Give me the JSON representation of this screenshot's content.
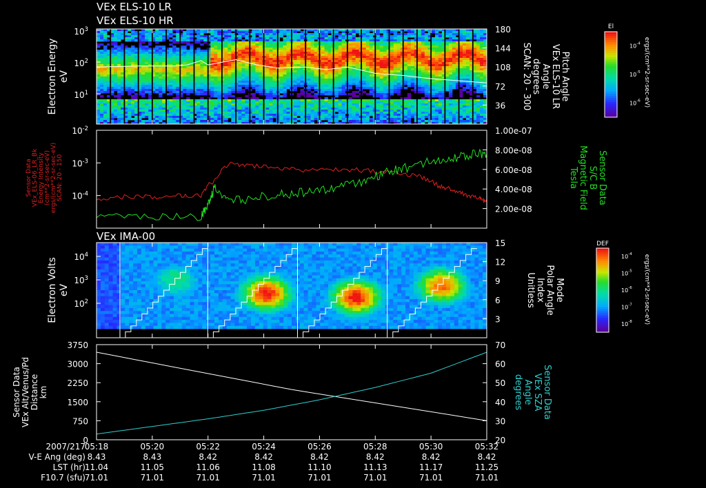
{
  "header": {
    "line1": "VEx ELS-10 LR",
    "line2": "VEx ELS-10 HR"
  },
  "colors": {
    "background": "#000000",
    "axes": "#ffffff",
    "energy_trace": "#e02020",
    "magnetic_trace": "#20e020",
    "sza_trace": "#30d0d0",
    "alt_trace": "#ffffff"
  },
  "chart_data": [
    {
      "type": "heatmap",
      "panel": "els-spectrogram",
      "ylabel": [
        "Electron Energy",
        "eV"
      ],
      "y_log": true,
      "yticks_left": [
        {
          "base": "10",
          "exp": "3"
        },
        {
          "base": "10",
          "exp": "2"
        },
        {
          "base": "10",
          "exp": "1"
        }
      ],
      "right_axis_label": [
        "Pitch Angle",
        "VEx ELS-10 LR",
        "Angle",
        "degrees",
        "SCAN: 20 - 300"
      ],
      "yticks_right": [
        "180",
        "144",
        "108",
        "72",
        "36"
      ],
      "ylim_right": [
        0,
        180
      ],
      "colorbar": {
        "title": "El",
        "unit": "ergs/(cm**2-sr-sec-eV)",
        "ticks": [
          {
            "base": "10",
            "exp": "-4"
          },
          {
            "base": "10",
            "exp": "-5"
          },
          {
            "base": "10",
            "exp": "-6"
          }
        ]
      },
      "pitch_angle_line": [
        {
          "t": "05:18:00",
          "deg": 108
        },
        {
          "t": "05:19:30",
          "deg": 110
        },
        {
          "t": "05:20:45",
          "deg": 110
        },
        {
          "t": "05:21:15",
          "deg": 112
        },
        {
          "t": "05:21:45",
          "deg": 120
        },
        {
          "t": "05:22:00",
          "deg": 112
        },
        {
          "t": "05:22:30",
          "deg": 117
        },
        {
          "t": "05:23:00",
          "deg": 122
        },
        {
          "t": "05:23:45",
          "deg": 112
        },
        {
          "t": "05:24:30",
          "deg": 106
        },
        {
          "t": "05:25:30",
          "deg": 108
        },
        {
          "t": "05:26:15",
          "deg": 103
        },
        {
          "t": "05:27:00",
          "deg": 108
        },
        {
          "t": "05:28:00",
          "deg": 96
        },
        {
          "t": "05:29:00",
          "deg": 92
        },
        {
          "t": "05:30:00",
          "deg": 86
        },
        {
          "t": "05:31:00",
          "deg": 82
        },
        {
          "t": "05:32:00",
          "deg": 78
        }
      ]
    },
    {
      "type": "line",
      "panel": "sensor-lines",
      "ylabel_left": [
        "Sensor Data",
        "VEx_ELS-06_LR_Bk",
        "Energy Intensity",
        "(cm**2-sr-sec-eV)",
        "ergs/(cm**2-sr-sec-eV)",
        "SCAN: 20 - 150"
      ],
      "yticks_left": [
        {
          "base": "10",
          "exp": "-2"
        },
        {
          "base": "10",
          "exp": "-3"
        },
        {
          "base": "10",
          "exp": "-4"
        }
      ],
      "ylabel_right": [
        "Sensor Data",
        "S/C B",
        "Magnetic Field",
        "Tesla"
      ],
      "yticks_right": [
        "1.00e-07",
        "8.00e-08",
        "6.00e-08",
        "4.00e-08",
        "2.00e-08"
      ],
      "ylim_right": [
        0,
        1e-07
      ],
      "series": [
        {
          "key": "energy_intensity",
          "log": true,
          "x": [
            "05:18:00",
            "05:19:00",
            "05:20:00",
            "05:21:00",
            "05:21:45",
            "05:22:15",
            "05:22:45",
            "05:23:30",
            "05:24:30",
            "05:25:30",
            "05:26:30",
            "05:27:30",
            "05:28:30",
            "05:29:30",
            "05:30:15",
            "05:30:45",
            "05:31:15",
            "05:31:45",
            "05:32:00"
          ],
          "values": [
            8e-05,
            9e-05,
            9e-05,
            0.0001,
            0.0001,
            0.0003,
            0.0009,
            0.0008,
            0.0007,
            0.0006,
            0.00065,
            0.0006,
            0.0005,
            0.0004,
            0.0002,
            0.00015,
            0.0001,
            8e-05,
            6e-05
          ]
        },
        {
          "key": "magnetic_field",
          "log": false,
          "x": [
            "05:18:00",
            "05:20:00",
            "05:21:45",
            "05:22:00",
            "05:22:15",
            "05:22:45",
            "05:23:30",
            "05:24:30",
            "05:25:30",
            "05:26:30",
            "05:27:30",
            "05:28:15",
            "05:29:00",
            "05:30:00",
            "05:30:45",
            "05:31:30",
            "05:32:00"
          ],
          "values": [
            1.1e-08,
            1.1e-08,
            1.2e-08,
            2.3e-08,
            4.3e-08,
            2.7e-08,
            3e-08,
            3.4e-08,
            3.7e-08,
            4.1e-08,
            4.6e-08,
            5.6e-08,
            6.1e-08,
            6.8e-08,
            7.1e-08,
            7.5e-08,
            7.6e-08
          ]
        }
      ]
    },
    {
      "type": "heatmap",
      "panel": "ima-spectrogram",
      "title": "VEx IMA-00",
      "ylabel": [
        "Electron Volts",
        "eV"
      ],
      "y_log": true,
      "yticks_left": [
        {
          "base": "10",
          "exp": "4"
        },
        {
          "base": "10",
          "exp": "3"
        },
        {
          "base": "10",
          "exp": "2"
        }
      ],
      "right_axis_label": [
        "Mode",
        "Polar Angle",
        "Index",
        "Unitless"
      ],
      "yticks_right": [
        "15",
        "12",
        "9",
        "6",
        "3"
      ],
      "ylim_right": [
        0,
        15
      ],
      "colorbar": {
        "title": "DEF",
        "unit": "ergs/(cm**2-sr-sec-eV)",
        "ticks": [
          {
            "base": "10",
            "exp": "-4"
          },
          {
            "base": "10",
            "exp": "-5"
          },
          {
            "base": "10",
            "exp": "-6"
          },
          {
            "base": "10",
            "exp": "-7"
          },
          {
            "base": "10",
            "exp": "-8"
          }
        ]
      }
    },
    {
      "type": "line",
      "panel": "geometry-lines",
      "ylabel_left": [
        "Sensor Data",
        "VEx Alt/Venus/Pd",
        "Distance",
        "km"
      ],
      "yticks_left": [
        "3750",
        "3000",
        "2250",
        "1500",
        "750",
        "0"
      ],
      "ylim_left": [
        0,
        3750
      ],
      "ylabel_right": [
        "Sensor Data",
        "VEx SZA",
        "Angle",
        "degrees"
      ],
      "yticks_right": [
        "70",
        "60",
        "50",
        "40",
        "30",
        "20"
      ],
      "ylim_right": [
        20,
        70
      ],
      "series": [
        {
          "key": "altitude",
          "x": [
            "05:18",
            "05:25",
            "05:32"
          ],
          "values": [
            3450,
            1980,
            750
          ]
        },
        {
          "key": "sza",
          "x": [
            "05:18",
            "05:20",
            "05:22",
            "05:24",
            "05:26",
            "05:28",
            "05:30",
            "05:32"
          ],
          "values": [
            23,
            27,
            31,
            35.5,
            41,
            47.5,
            55,
            66
          ]
        }
      ]
    }
  ],
  "time_axis": {
    "date": "2007/217",
    "ticks": [
      "05:18",
      "05:20",
      "05:22",
      "05:24",
      "05:26",
      "05:28",
      "05:30",
      "05:32"
    ]
  },
  "footer_rows": [
    {
      "label": "V-E Ang (deg)",
      "values": [
        "8.43",
        "8.43",
        "8.42",
        "8.42",
        "8.42",
        "8.42",
        "8.42",
        "8.42"
      ]
    },
    {
      "label": "LST (hr)",
      "values": [
        "11.04",
        "11.05",
        "11.06",
        "11.08",
        "11.10",
        "11.13",
        "11.17",
        "11.25"
      ]
    },
    {
      "label": "F10.7 (sfu)",
      "values": [
        "71.01",
        "71.01",
        "71.01",
        "71.01",
        "71.01",
        "71.01",
        "71.01",
        "71.01"
      ]
    }
  ]
}
